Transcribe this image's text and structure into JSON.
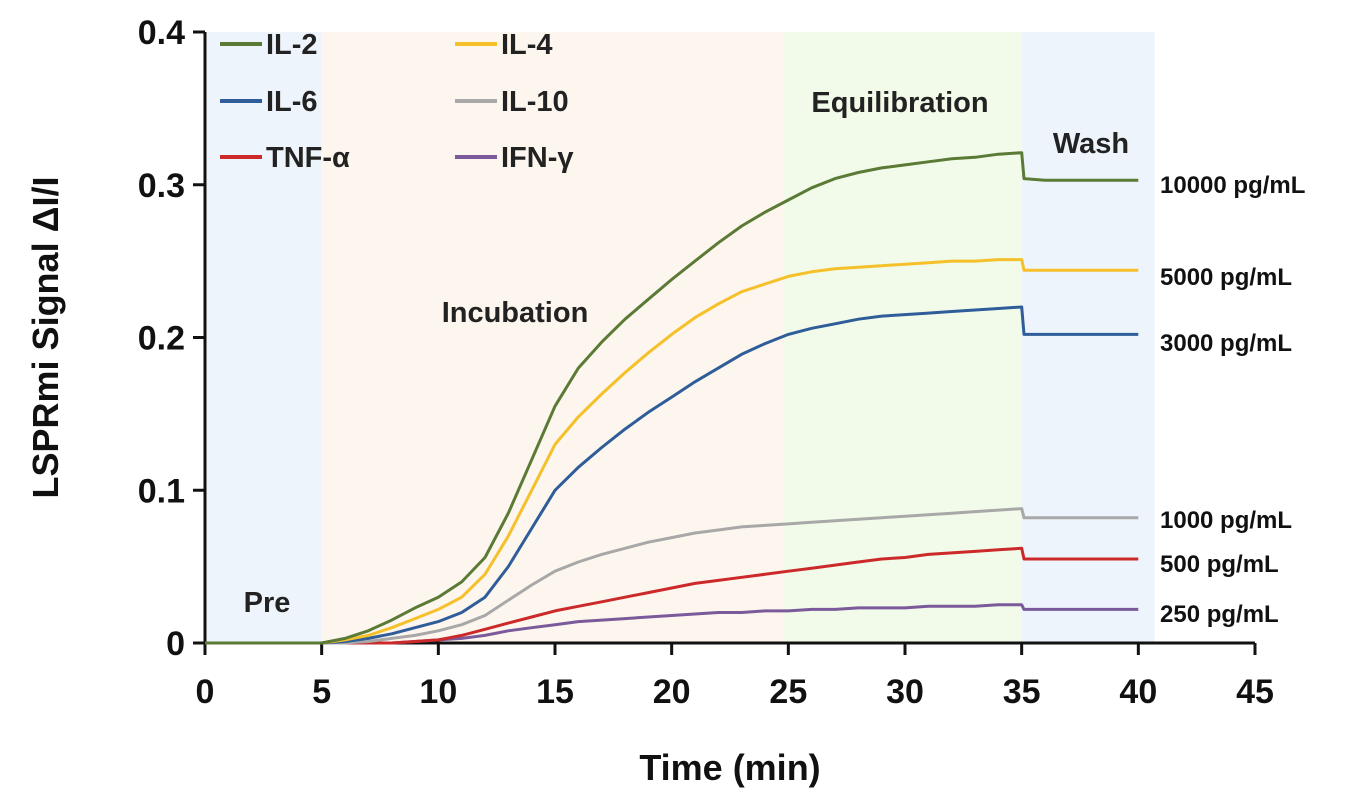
{
  "chart_data": {
    "type": "line",
    "xlabel": "Time (min)",
    "ylabel": "LSPRmi Signal ΔI/I",
    "xlim": [
      0,
      45
    ],
    "ylim": [
      0,
      0.4
    ],
    "x_ticks": [
      "0",
      "5",
      "10",
      "15",
      "20",
      "25",
      "30",
      "35",
      "40",
      "45"
    ],
    "y_ticks": [
      "0",
      "0.1",
      "0.2",
      "0.3",
      "0.4"
    ],
    "grid": false,
    "legend_placement": "top-left",
    "phases": [
      {
        "label": "Pre",
        "start": 0,
        "end": 5,
        "color": "#eef4fb"
      },
      {
        "label": "Incubation",
        "start": 5,
        "end": 24.8,
        "color": "#fdf6ee"
      },
      {
        "label": "Equilibration",
        "start": 24.8,
        "end": 35,
        "color": "#f2fbe9"
      },
      {
        "label": "Wash",
        "start": 35,
        "end": 40.7,
        "color": "#eef4fb"
      }
    ],
    "series": [
      {
        "name": "IL-2",
        "color": "#5a7a36",
        "end_label": "10000 pg/mL",
        "x": [
          0,
          5,
          6,
          7,
          8,
          9,
          10,
          11,
          12,
          13,
          14,
          15,
          16,
          17,
          18,
          19,
          20,
          21,
          22,
          23,
          24,
          25,
          26,
          27,
          28,
          29,
          30,
          31,
          32,
          33,
          34,
          35,
          35.1,
          36,
          38,
          40
        ],
        "y": [
          0,
          0,
          0.003,
          0.008,
          0.015,
          0.023,
          0.03,
          0.04,
          0.056,
          0.085,
          0.12,
          0.155,
          0.18,
          0.197,
          0.212,
          0.225,
          0.238,
          0.25,
          0.262,
          0.273,
          0.282,
          0.29,
          0.298,
          0.304,
          0.308,
          0.311,
          0.313,
          0.315,
          0.317,
          0.318,
          0.32,
          0.321,
          0.304,
          0.303,
          0.303,
          0.303
        ]
      },
      {
        "name": "IL-4",
        "color": "#f5c02a",
        "end_label": "5000 pg/mL",
        "x": [
          0,
          5,
          6,
          7,
          8,
          9,
          10,
          11,
          12,
          13,
          14,
          15,
          16,
          17,
          18,
          19,
          20,
          21,
          22,
          23,
          24,
          25,
          26,
          27,
          28,
          29,
          30,
          31,
          32,
          33,
          34,
          35,
          35.1,
          36,
          38,
          40
        ],
        "y": [
          0,
          0,
          0.002,
          0.005,
          0.01,
          0.016,
          0.022,
          0.03,
          0.045,
          0.07,
          0.1,
          0.13,
          0.148,
          0.163,
          0.177,
          0.19,
          0.202,
          0.213,
          0.222,
          0.23,
          0.235,
          0.24,
          0.243,
          0.245,
          0.246,
          0.247,
          0.248,
          0.249,
          0.25,
          0.25,
          0.251,
          0.251,
          0.244,
          0.244,
          0.244,
          0.244
        ]
      },
      {
        "name": "IL-6",
        "color": "#2f5d99",
        "end_label": "3000 pg/mL",
        "x": [
          0,
          5,
          6,
          7,
          8,
          9,
          10,
          11,
          12,
          13,
          14,
          15,
          16,
          17,
          18,
          19,
          20,
          21,
          22,
          23,
          24,
          25,
          26,
          27,
          28,
          29,
          30,
          31,
          32,
          33,
          34,
          35,
          35.1,
          36,
          38,
          40
        ],
        "y": [
          0,
          0,
          0.001,
          0.003,
          0.006,
          0.01,
          0.014,
          0.02,
          0.03,
          0.05,
          0.075,
          0.1,
          0.115,
          0.128,
          0.14,
          0.151,
          0.161,
          0.171,
          0.18,
          0.189,
          0.196,
          0.202,
          0.206,
          0.209,
          0.212,
          0.214,
          0.215,
          0.216,
          0.217,
          0.218,
          0.219,
          0.22,
          0.202,
          0.202,
          0.202,
          0.202
        ]
      },
      {
        "name": "IL-10",
        "color": "#a8a8a8",
        "end_label": "1000 pg/mL",
        "x": [
          0,
          5,
          6,
          7,
          8,
          9,
          10,
          11,
          12,
          13,
          14,
          15,
          16,
          17,
          18,
          19,
          20,
          21,
          22,
          23,
          24,
          25,
          26,
          27,
          28,
          29,
          30,
          31,
          32,
          33,
          34,
          35,
          35.1,
          36,
          38,
          40
        ],
        "y": [
          0,
          0,
          0,
          0.001,
          0.003,
          0.005,
          0.008,
          0.012,
          0.018,
          0.028,
          0.038,
          0.047,
          0.053,
          0.058,
          0.062,
          0.066,
          0.069,
          0.072,
          0.074,
          0.076,
          0.077,
          0.078,
          0.079,
          0.08,
          0.081,
          0.082,
          0.083,
          0.084,
          0.085,
          0.086,
          0.087,
          0.088,
          0.082,
          0.082,
          0.082,
          0.082
        ]
      },
      {
        "name": "TNF-α",
        "color": "#cc2a2a",
        "end_label": "500 pg/mL",
        "x": [
          0,
          5,
          6,
          7,
          8,
          9,
          10,
          11,
          12,
          13,
          14,
          15,
          16,
          17,
          18,
          19,
          20,
          21,
          22,
          23,
          24,
          25,
          26,
          27,
          28,
          29,
          30,
          31,
          32,
          33,
          34,
          35,
          35.1,
          36,
          38,
          40
        ],
        "y": [
          0,
          0,
          0,
          0,
          0,
          0.001,
          0.002,
          0.005,
          0.009,
          0.013,
          0.017,
          0.021,
          0.024,
          0.027,
          0.03,
          0.033,
          0.036,
          0.039,
          0.041,
          0.043,
          0.045,
          0.047,
          0.049,
          0.051,
          0.053,
          0.055,
          0.056,
          0.058,
          0.059,
          0.06,
          0.061,
          0.062,
          0.055,
          0.055,
          0.055,
          0.055
        ]
      },
      {
        "name": "IFN-γ",
        "color": "#7b5a9c",
        "end_label": "250 pg/mL",
        "x": [
          0,
          5,
          6,
          7,
          8,
          9,
          10,
          11,
          12,
          13,
          14,
          15,
          16,
          17,
          18,
          19,
          20,
          21,
          22,
          23,
          24,
          25,
          26,
          27,
          28,
          29,
          30,
          31,
          32,
          33,
          34,
          35,
          35.1,
          36,
          38,
          40
        ],
        "y": [
          0,
          0,
          0,
          0,
          0,
          0.001,
          0.002,
          0.003,
          0.005,
          0.008,
          0.01,
          0.012,
          0.014,
          0.015,
          0.016,
          0.017,
          0.018,
          0.019,
          0.02,
          0.02,
          0.021,
          0.021,
          0.022,
          0.022,
          0.023,
          0.023,
          0.023,
          0.024,
          0.024,
          0.024,
          0.025,
          0.025,
          0.022,
          0.022,
          0.022,
          0.022
        ]
      }
    ]
  }
}
